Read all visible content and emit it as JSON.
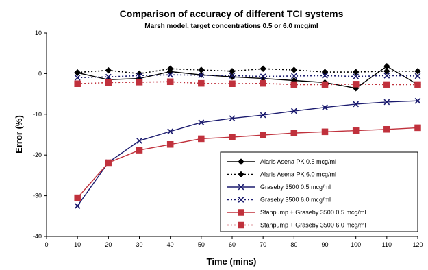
{
  "chart_data": {
    "type": "line",
    "title": "Comparison of accuracy of different TCI systems",
    "subtitle": "Marsh model, target concentrations 0.5 or 6.0 mcg/ml",
    "xlabel": "Time (mins)",
    "ylabel": "Error (%)",
    "xlim": [
      0,
      120
    ],
    "ylim": [
      -40,
      10
    ],
    "x_ticks": [
      0,
      10,
      20,
      30,
      40,
      50,
      60,
      70,
      80,
      90,
      100,
      110,
      120
    ],
    "y_ticks": [
      10,
      0,
      -10,
      -20,
      -30,
      -40
    ],
    "grid": false,
    "legend_position": "bottom-right",
    "series": [
      {
        "name": "Alaris Asena PK 0.5 mcg/ml",
        "color": "#000000",
        "line": "solid",
        "marker": "diamond",
        "x": [
          10,
          20,
          30,
          40,
          50,
          60,
          70,
          80,
          90,
          100,
          110,
          120
        ],
        "values": [
          0.2,
          -1.5,
          -1.2,
          0.5,
          -0.3,
          -0.8,
          -1.2,
          -1.7,
          -2.2,
          -3.6,
          1.8,
          -2.7
        ]
      },
      {
        "name": "Alaris Asena PK 6.0 mcg/ml",
        "color": "#000000",
        "line": "dotted",
        "marker": "diamond",
        "x": [
          10,
          20,
          30,
          40,
          50,
          60,
          70,
          80,
          90,
          100,
          110,
          120
        ],
        "values": [
          0.3,
          0.8,
          0.0,
          1.2,
          0.9,
          0.6,
          1.2,
          0.9,
          0.4,
          0.4,
          0.6,
          0.6
        ]
      },
      {
        "name": "Graseby 3500 0.5 mcg/ml",
        "color": "#1a1a6e",
        "line": "solid",
        "marker": "x",
        "x": [
          10,
          20,
          30,
          40,
          50,
          60,
          70,
          80,
          90,
          100,
          110,
          120
        ],
        "values": [
          -32.5,
          -21.8,
          -16.5,
          -14.2,
          -12.0,
          -11.0,
          -10.2,
          -9.2,
          -8.3,
          -7.5,
          -7.0,
          -6.7
        ]
      },
      {
        "name": "Graseby 3500 6.0 mcg/ml",
        "color": "#1a1a6e",
        "line": "dotted",
        "marker": "x",
        "x": [
          10,
          20,
          30,
          40,
          50,
          60,
          70,
          80,
          90,
          100,
          110,
          120
        ],
        "values": [
          -1.0,
          -0.8,
          -0.5,
          -0.3,
          -0.4,
          -0.5,
          -0.7,
          -0.6,
          -0.5,
          -0.7,
          -0.5,
          -0.6
        ]
      },
      {
        "name": "Stanpump + Graseby 3500 0.5 mcg/ml",
        "color": "#c0313c",
        "line": "solid",
        "marker": "square",
        "x": [
          10,
          20,
          30,
          40,
          50,
          60,
          70,
          80,
          90,
          100,
          110,
          120
        ],
        "values": [
          -30.5,
          -21.9,
          -18.8,
          -17.4,
          -16.0,
          -15.6,
          -15.1,
          -14.6,
          -14.3,
          -14.0,
          -13.7,
          -13.3
        ]
      },
      {
        "name": "Stanpump + Graseby 3500 6.0 mcg/ml",
        "color": "#c0313c",
        "line": "dotted",
        "marker": "square",
        "x": [
          10,
          20,
          30,
          40,
          50,
          60,
          70,
          80,
          90,
          100,
          110,
          120
        ],
        "values": [
          -2.5,
          -2.2,
          -2.1,
          -2.0,
          -2.4,
          -2.5,
          -2.4,
          -2.7,
          -2.7,
          -2.6,
          -2.7,
          -2.7
        ]
      }
    ]
  }
}
